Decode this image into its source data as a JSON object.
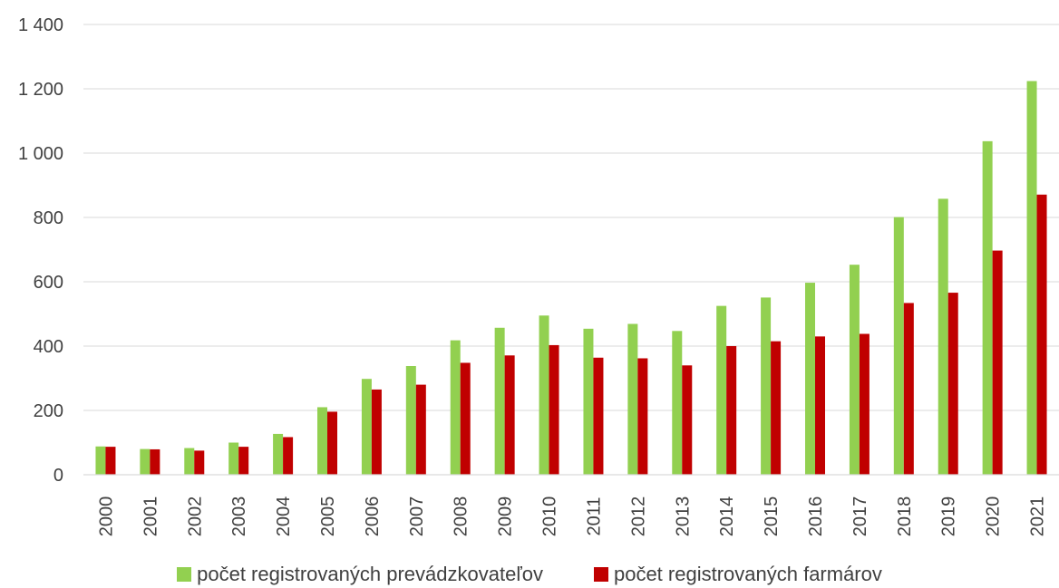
{
  "chart_data": {
    "type": "bar",
    "categories": [
      "2000",
      "2001",
      "2002",
      "2003",
      "2004",
      "2005",
      "2006",
      "2007",
      "2008",
      "2009",
      "2010",
      "2011",
      "2012",
      "2013",
      "2014",
      "2015",
      "2016",
      "2017",
      "2018",
      "2019",
      "2020",
      "2021"
    ],
    "series": [
      {
        "name": "počet registrovaných prevádzkovateľov",
        "color": "#92d050",
        "values": [
          88,
          80,
          83,
          100,
          127,
          210,
          298,
          338,
          418,
          457,
          495,
          454,
          469,
          447,
          525,
          551,
          597,
          653,
          801,
          858,
          1037,
          1224
        ]
      },
      {
        "name": "počet registrovaných farmárov",
        "color": "#c00000",
        "values": [
          87,
          79,
          75,
          87,
          117,
          196,
          265,
          280,
          348,
          371,
          403,
          364,
          362,
          340,
          400,
          415,
          430,
          438,
          534,
          566,
          697,
          871
        ]
      }
    ],
    "ylim": [
      0,
      1400
    ],
    "yticks": [
      0,
      200,
      400,
      600,
      800,
      1000,
      1200,
      1400
    ],
    "ytick_labels": [
      "0",
      "200",
      "400",
      "600",
      "800",
      "1 000",
      "1 200",
      "1 400"
    ],
    "grid": true,
    "legend_position": "bottom",
    "title": "",
    "xlabel": "",
    "ylabel": ""
  }
}
